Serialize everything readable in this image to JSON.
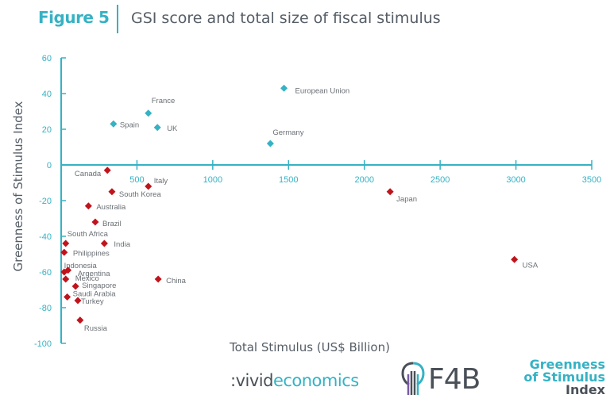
{
  "figure": {
    "label": "Figure 5",
    "title": "GSI score and total size of fiscal stimulus"
  },
  "logos": {
    "vivid_prefix": ":vivid",
    "vivid_suffix": "economics",
    "f4b_text": "F4B",
    "gsi_line1": "Greenness",
    "gsi_line2": "of Stimulus",
    "gsi_line3": "Index"
  },
  "colors": {
    "positive": "#35b2c4",
    "negative": "#c0141c",
    "axis": "#35b2c4",
    "text": "#555d66"
  },
  "chart_data": {
    "type": "scatter",
    "title": "GSI score and total size of fiscal stimulus",
    "xlabel": "Total Stimulus (US$ Billion)",
    "ylabel": "Greenness of Stimulus Index",
    "xlim": [
      0,
      3500
    ],
    "ylim": [
      -100,
      60
    ],
    "x_ticks": [
      500,
      1000,
      1500,
      2000,
      2500,
      3000,
      3500
    ],
    "y_ticks": [
      60,
      40,
      20,
      0,
      -20,
      -40,
      -60,
      -80,
      -100
    ],
    "grid": false,
    "marker_shape": "diamond",
    "points": [
      {
        "label": "European Union",
        "x": 1470,
        "y": 43,
        "group": "positive"
      },
      {
        "label": "France",
        "x": 575,
        "y": 29,
        "group": "positive"
      },
      {
        "label": "Spain",
        "x": 345,
        "y": 23,
        "group": "positive"
      },
      {
        "label": "UK",
        "x": 635,
        "y": 21,
        "group": "positive"
      },
      {
        "label": "Germany",
        "x": 1380,
        "y": 12,
        "group": "positive"
      },
      {
        "label": "Canada",
        "x": 305,
        "y": -3,
        "group": "negative"
      },
      {
        "label": "Italy",
        "x": 575,
        "y": -12,
        "group": "negative"
      },
      {
        "label": "South Korea",
        "x": 335,
        "y": -15,
        "group": "negative"
      },
      {
        "label": "Japan",
        "x": 2170,
        "y": -15,
        "group": "negative"
      },
      {
        "label": "Australia",
        "x": 180,
        "y": -23,
        "group": "negative"
      },
      {
        "label": "Brazil",
        "x": 225,
        "y": -32,
        "group": "negative"
      },
      {
        "label": "South Africa",
        "x": 30,
        "y": -44,
        "group": "negative"
      },
      {
        "label": "India",
        "x": 285,
        "y": -44,
        "group": "negative"
      },
      {
        "label": "Philippines",
        "x": 20,
        "y": -49,
        "group": "negative"
      },
      {
        "label": "USA",
        "x": 2990,
        "y": -53,
        "group": "negative"
      },
      {
        "label": "Indonesia",
        "x": 45,
        "y": -59,
        "group": "negative"
      },
      {
        "label": "Argentina",
        "x": 20,
        "y": -60,
        "group": "negative"
      },
      {
        "label": "Mexico",
        "x": 30,
        "y": -64,
        "group": "negative"
      },
      {
        "label": "China",
        "x": 640,
        "y": -64,
        "group": "negative"
      },
      {
        "label": "Singapore",
        "x": 95,
        "y": -68,
        "group": "negative"
      },
      {
        "label": "Saudi Arabia",
        "x": 40,
        "y": -74,
        "group": "negative"
      },
      {
        "label": "Turkey",
        "x": 110,
        "y": -76,
        "group": "negative"
      },
      {
        "label": "Russia",
        "x": 125,
        "y": -87,
        "group": "negative"
      }
    ]
  }
}
